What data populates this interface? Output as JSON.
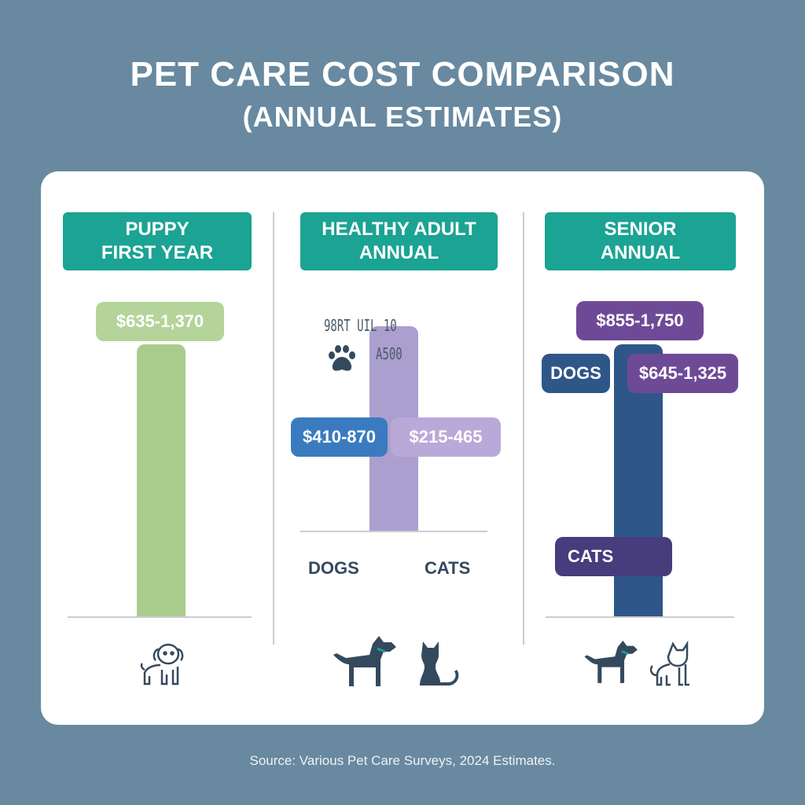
{
  "title": "PET CARE COST COMPARISON",
  "subtitle": "(ANNUAL ESTIMATES)",
  "source": "Source: Various Pet Care Surveys, 2024 Estimates.",
  "colors": {
    "background": "#6889a0",
    "header": "#1ba393",
    "puppy": "#a9cc8c",
    "adult_bar": "#ab9fcf",
    "dog_label": "#3a7bbf",
    "cat_label": "#b9a9d8",
    "senior_bar": "#2f5688",
    "senior_label": "#6e4a96",
    "senior_cats": "#473c7c"
  },
  "panels": [
    {
      "header": [
        "PUPPY",
        "FIRST YEAR"
      ],
      "labels": [
        "$635-1,370"
      ],
      "icons": [
        "puppy-icon"
      ]
    },
    {
      "header": [
        "HEALTHY ADULT",
        "ANNUAL"
      ],
      "labels": [
        "$410-870",
        "$215-465"
      ],
      "axis": [
        "DOGS",
        "CATS"
      ],
      "garbled": [
        "98RT  UIL 10",
        "A500"
      ],
      "icons": [
        "paw-icon",
        "dog-icon",
        "cat-icon"
      ]
    },
    {
      "header": [
        "SENIOR",
        "ANNUAL"
      ],
      "labels": [
        "$855-1,750",
        "$645-1,325"
      ],
      "tags": [
        "DOGS",
        "CATS"
      ],
      "icons": [
        "dog-icon",
        "cat-icon"
      ]
    }
  ],
  "chart_data": {
    "type": "bar",
    "title": "PET CARE COST COMPARISON",
    "subtitle": "(ANNUAL ESTIMATES)",
    "categories": [
      "PUPPY FIRST YEAR",
      "HEALTHY ADULT ANNUAL",
      "SENIOR ANNUAL"
    ],
    "series": [
      {
        "name": "DOGS",
        "ranges": [
          [
            635,
            1370
          ],
          [
            410,
            870
          ],
          [
            855,
            1750
          ]
        ]
      },
      {
        "name": "CATS",
        "ranges": [
          null,
          [
            215,
            465
          ],
          [
            645,
            1325
          ]
        ]
      }
    ],
    "grid": false
  }
}
